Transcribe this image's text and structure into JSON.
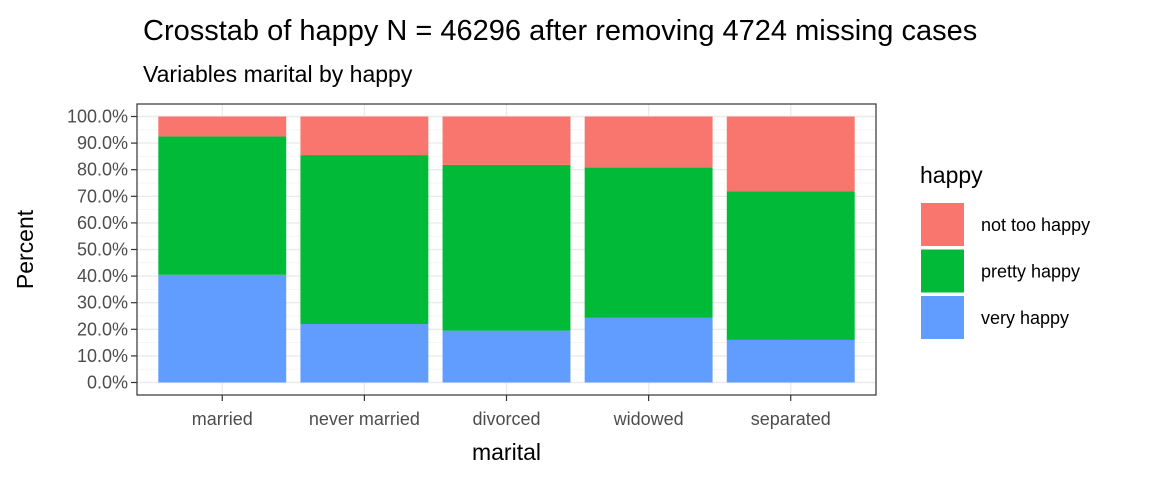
{
  "chart_data": {
    "type": "bar",
    "stacked": "percent",
    "title": "Crosstab of happy N = 46296 after removing 4724 missing cases",
    "subtitle": "Variables marital by happy",
    "xlabel": "marital",
    "ylabel": "Percent",
    "ylim": [
      0,
      100
    ],
    "yticks": [
      "0.0%",
      "10.0%",
      "20.0%",
      "30.0%",
      "40.0%",
      "50.0%",
      "60.0%",
      "70.0%",
      "80.0%",
      "90.0%",
      "100.0%"
    ],
    "categories": [
      "married",
      "never married",
      "divorced",
      "widowed",
      "separated"
    ],
    "series": [
      {
        "name": "very happy",
        "color": "#619CFF",
        "values": [
          40.5,
          22.0,
          19.5,
          24.3,
          16.0
        ]
      },
      {
        "name": "pretty happy",
        "color": "#00BA38",
        "values": [
          52.0,
          63.5,
          62.3,
          56.5,
          55.8
        ]
      },
      {
        "name": "not too happy",
        "color": "#F8766D",
        "values": [
          7.5,
          14.5,
          18.2,
          19.2,
          28.2
        ]
      }
    ],
    "legend": {
      "title": "happy",
      "position": "right",
      "order": [
        "not too happy",
        "pretty happy",
        "very happy"
      ]
    },
    "grid": true
  }
}
